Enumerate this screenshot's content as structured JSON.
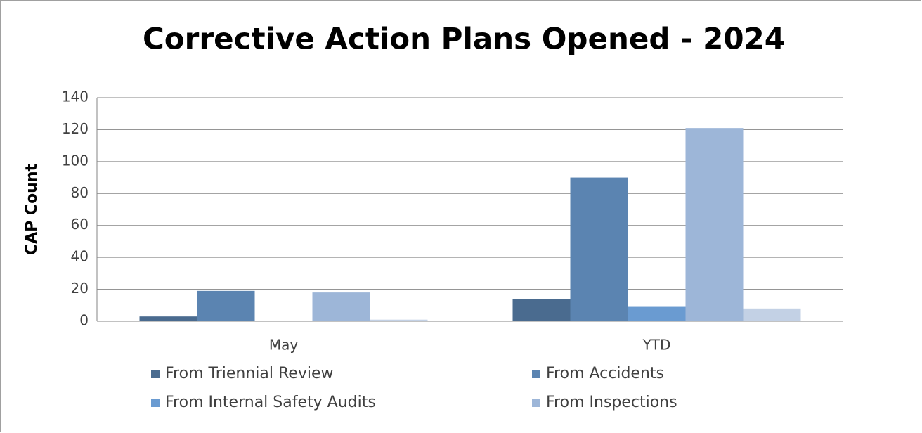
{
  "chart_data": {
    "type": "bar",
    "title": "Corrective Action Plans Opened - 2024",
    "y_label": "CAP Count",
    "categories": [
      "May",
      "YTD"
    ],
    "series": [
      {
        "name": "From Triennial Review",
        "color": "#4a6b8f",
        "values": [
          3,
          14
        ]
      },
      {
        "name": "From Accidents",
        "color": "#5b84b1",
        "values": [
          19,
          90
        ]
      },
      {
        "name": "From Internal Safety Audits",
        "color": "#6a9bd1",
        "values": [
          0,
          9
        ]
      },
      {
        "name": "From Inspections",
        "color": "#9db6d8",
        "values": [
          18,
          121
        ]
      },
      {
        "color": "#c3d1e5",
        "values": [
          1,
          8
        ]
      }
    ],
    "ylim": [
      0,
      140
    ],
    "yticks": [
      0,
      20,
      40,
      60,
      80,
      100,
      120,
      140
    ],
    "grid": true
  }
}
